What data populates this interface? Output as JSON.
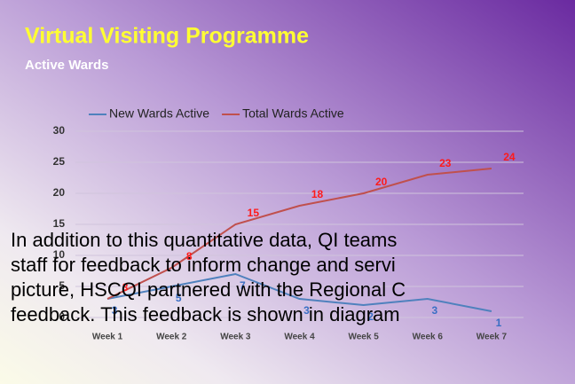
{
  "chart_data": {
    "type": "line",
    "title": "Virtual Visiting Programme",
    "subtitle": "Active Wards",
    "categories": [
      "Week 1",
      "Week 2",
      "Week 3",
      "Week 4",
      "Week 5",
      "Week 6",
      "Week 7"
    ],
    "series": [
      {
        "name": "New Wards Active",
        "color": "#4f81bd",
        "values": [
          3,
          5,
          7,
          3,
          2,
          3,
          1
        ]
      },
      {
        "name": "Total Wards Active",
        "color": "#c0504d",
        "values": [
          3,
          8,
          15,
          18,
          20,
          23,
          24
        ]
      }
    ],
    "ylim": [
      0,
      30
    ],
    "yticks": [
      0,
      5,
      10,
      15,
      20,
      25,
      30
    ],
    "grid": true,
    "legend": "top"
  },
  "overlay_text": [
    "In addition to this quantitative data, QI teams",
    "staff for feedback to inform change and servi",
    "picture, HSCQI partnered with the Regional C",
    "feedback. This feedback is shown in diagram"
  ]
}
